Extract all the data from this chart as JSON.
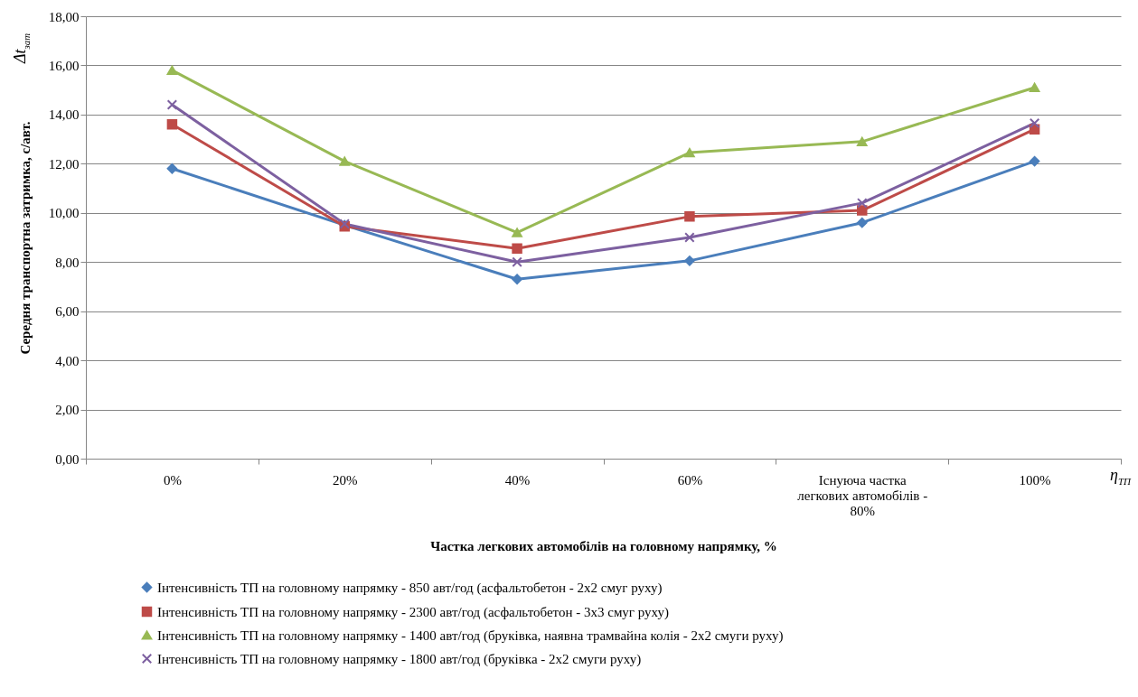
{
  "chart_data": {
    "type": "line",
    "xlabel": "Частка легкових автомобілів на головному напрямку, %",
    "ylabel": "Середня транспортна затримка, с/авт.",
    "categories": [
      "0%",
      "20%",
      "40%",
      "60%",
      "Існуюча частка легкових автомобілів - 80%",
      "100%"
    ],
    "series": [
      {
        "name": "Інтенсивність ТП на головному напрямку - 850 авт/год (асфальтобетон - 2х2 смуг руху)",
        "color": "#4a7ebb",
        "marker": "diamond",
        "values": [
          11.8,
          9.5,
          7.3,
          8.05,
          9.6,
          12.1
        ]
      },
      {
        "name": "Інтенсивність ТП на головному напрямку - 2300 авт/год  (асфальтобетон - 3х3 смуг руху)",
        "color": "#be4b48",
        "marker": "square",
        "values": [
          13.6,
          9.45,
          8.55,
          9.85,
          10.1,
          13.4
        ]
      },
      {
        "name": "Інтенсивність ТП на головному напрямку - 1400 авт/год (бруківка, наявна трамвайна колія - 2х2 смуги руху)",
        "color": "#98b954",
        "marker": "triangle",
        "values": [
          15.8,
          12.1,
          9.2,
          12.45,
          12.9,
          15.1
        ]
      },
      {
        "name": "Інтенсивність ТП на головному напрямку - 1800 авт/год (бруківка - 2х2 смуги руху)",
        "color": "#7d60a0",
        "marker": "cross",
        "values": [
          14.4,
          9.55,
          8.0,
          9.0,
          10.4,
          13.65
        ]
      }
    ],
    "ylim": [
      0,
      18
    ],
    "yticks": [
      {
        "value": 0,
        "label": "0,00"
      },
      {
        "value": 2,
        "label": "2,00"
      },
      {
        "value": 4,
        "label": "4,00"
      },
      {
        "value": 6,
        "label": "6,00"
      },
      {
        "value": 8,
        "label": "8,00"
      },
      {
        "value": 10,
        "label": "10,00"
      },
      {
        "value": 12,
        "label": "12,00"
      },
      {
        "value": 14,
        "label": "14,00"
      },
      {
        "value": 16,
        "label": "16,00"
      },
      {
        "value": 18,
        "label": "18,00"
      }
    ],
    "grid": "y",
    "legend": "bottom",
    "line_style": "solid",
    "annotations": [
      "Δt$_{зат}$",
      "η$_{ТП}$"
    ]
  }
}
